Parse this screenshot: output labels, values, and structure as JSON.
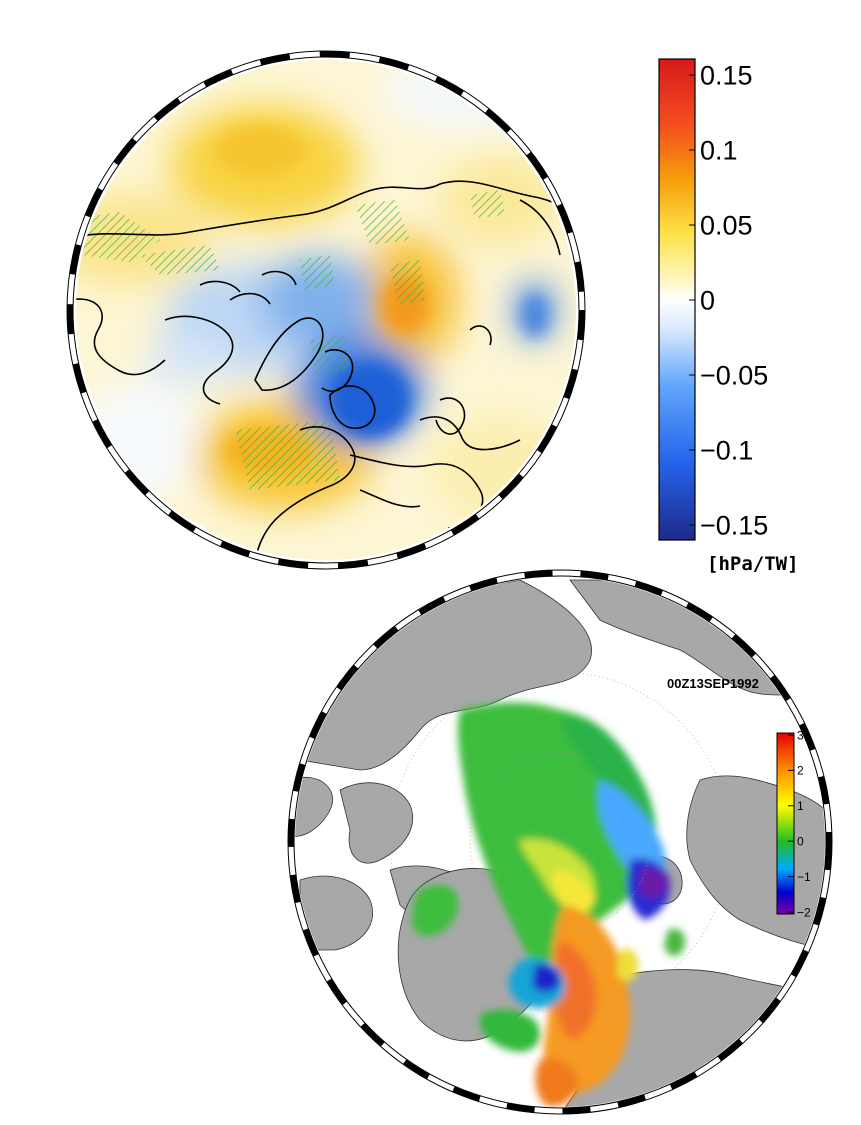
{
  "top_panel": {
    "colorbar": {
      "ticks": [
        "0.15",
        "0.1",
        "0.05",
        "0",
        "−0.05",
        "−0.1",
        "−0.15"
      ],
      "unit": "[hPa/TW]",
      "colors": [
        "#e41a1c",
        "#f97316",
        "#fbbf24",
        "#fde68a",
        "#ffffff",
        "#bfdbfe",
        "#60a5fa",
        "#2563eb",
        "#1e3a8a"
      ]
    }
  },
  "bottom_panel": {
    "timestamp": "00Z13SEP1992",
    "colorbar": {
      "ticks": [
        "3",
        "2",
        "1",
        "0",
        "−1",
        "−2"
      ],
      "colors": [
        "#e60000",
        "#ff8c00",
        "#ffff00",
        "#22bb22",
        "#00aaff",
        "#0000cc",
        "#7a00a8"
      ]
    }
  }
}
